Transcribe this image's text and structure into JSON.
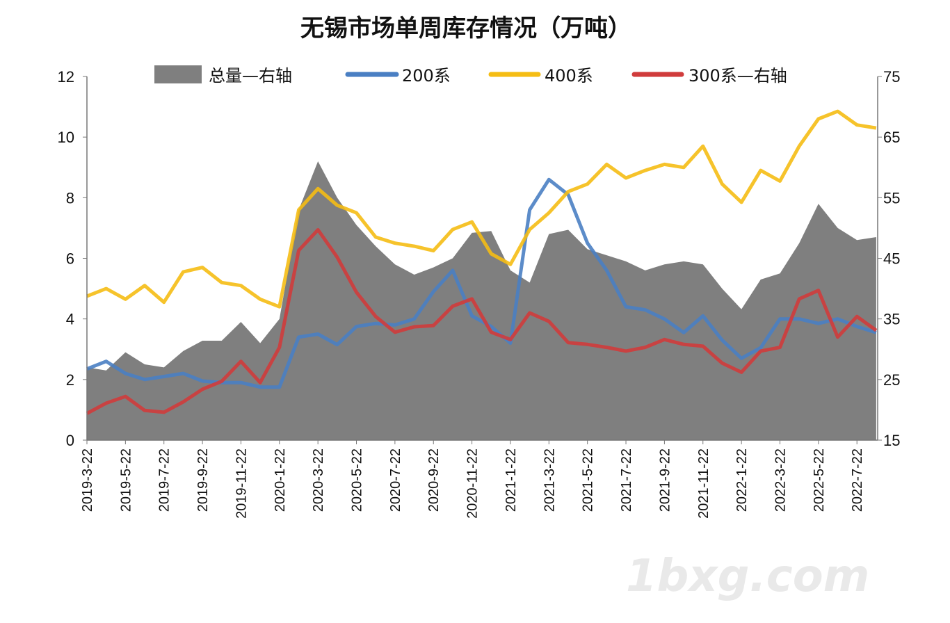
{
  "chart_data": {
    "type": "line",
    "title": "无锡市场单周库存情况（万吨）",
    "x": [
      "2019-3-22",
      "2019-4-22",
      "2019-5-22",
      "2019-6-22",
      "2019-7-22",
      "2019-8-22",
      "2019-9-22",
      "2019-10-22",
      "2019-11-22",
      "2019-12-22",
      "2020-1-22",
      "2020-2-22",
      "2020-3-22",
      "2020-4-22",
      "2020-5-22",
      "2020-6-22",
      "2020-7-22",
      "2020-8-22",
      "2020-9-22",
      "2020-10-22",
      "2020-11-22",
      "2020-12-22",
      "2021-1-22",
      "2021-2-22",
      "2021-3-22",
      "2021-4-22",
      "2021-5-22",
      "2021-6-22",
      "2021-7-22",
      "2021-8-22",
      "2021-9-22",
      "2021-10-22",
      "2021-11-22",
      "2021-12-22",
      "2022-1-22",
      "2022-2-22",
      "2022-3-22",
      "2022-4-22",
      "2022-5-22",
      "2022-6-22",
      "2022-7-22",
      "2022-8-22"
    ],
    "x_tick_labels": [
      "2019-3-22",
      "2019-5-22",
      "2019-7-22",
      "2019-9-22",
      "2019-11-22",
      "2020-1-22",
      "2020-3-22",
      "2020-5-22",
      "2020-7-22",
      "2020-9-22",
      "2020-11-22",
      "2021-1-22",
      "2021-3-22",
      "2021-5-22",
      "2021-7-22",
      "2021-9-22",
      "2021-11-22",
      "2022-1-22",
      "2022-3-22",
      "2022-5-22",
      "2022-7-22"
    ],
    "y_left": {
      "ylim": [
        0,
        12
      ],
      "ticks": [
        "0",
        "2",
        "4",
        "6",
        "8",
        "10",
        "12"
      ]
    },
    "y_right": {
      "ylim": [
        15,
        75
      ],
      "ticks": [
        "15",
        "25",
        "35",
        "45",
        "55",
        "65",
        "75"
      ]
    },
    "grid": false,
    "legend_position": "top",
    "series": [
      {
        "name": "总量—右轴",
        "type": "area",
        "axis": "right",
        "color": "#7f7f7f",
        "values": [
          27,
          26.5,
          29.5,
          27.5,
          27,
          29.7,
          31.4,
          31.4,
          34.5,
          31,
          35,
          53,
          61,
          55,
          50.5,
          47,
          44,
          42.3,
          43.5,
          45,
          49.2,
          49.5,
          43,
          41,
          49,
          49.7,
          46.5,
          45.5,
          44.5,
          43,
          44,
          44.5,
          44,
          40,
          36.6,
          41.5,
          42.5,
          47.5,
          54,
          50,
          48,
          48.5
        ]
      },
      {
        "name": "200系",
        "type": "line",
        "axis": "left",
        "color": "#4a7fc3",
        "values": [
          2.35,
          2.6,
          2.2,
          2.0,
          2.1,
          2.2,
          1.95,
          1.9,
          1.9,
          1.75,
          1.75,
          3.4,
          3.5,
          3.15,
          3.75,
          3.85,
          3.8,
          4.0,
          4.9,
          5.6,
          4.1,
          3.75,
          3.2,
          7.6,
          8.6,
          8.1,
          6.5,
          5.6,
          4.4,
          4.3,
          4.0,
          3.55,
          4.1,
          3.3,
          2.7,
          3.05,
          4.0,
          4.0,
          3.85,
          4.0,
          3.75,
          3.55
        ]
      },
      {
        "name": "400系",
        "type": "line",
        "axis": "left",
        "color": "#f5bd14",
        "values": [
          4.75,
          5.0,
          4.65,
          5.1,
          4.55,
          5.55,
          5.7,
          5.2,
          5.1,
          4.65,
          4.4,
          7.6,
          8.3,
          7.75,
          7.5,
          6.7,
          6.5,
          6.4,
          6.25,
          6.95,
          7.2,
          6.15,
          5.8,
          6.95,
          7.5,
          8.2,
          8.45,
          9.1,
          8.65,
          8.9,
          9.1,
          9.0,
          9.7,
          8.45,
          7.85,
          8.9,
          8.55,
          9.7,
          10.6,
          10.85,
          10.4,
          10.3
        ]
      },
      {
        "name": "300系—右轴",
        "type": "line",
        "axis": "right",
        "color": "#d03c3c",
        "values": [
          19.4,
          21.1,
          22.2,
          19.9,
          19.6,
          21.3,
          23.4,
          24.7,
          28.0,
          24.5,
          30.3,
          46.3,
          49.7,
          45.2,
          39.4,
          35.4,
          32.8,
          33.7,
          33.9,
          37.1,
          38.3,
          32.8,
          31.6,
          36.0,
          34.6,
          31.1,
          30.8,
          30.3,
          29.7,
          30.3,
          31.6,
          30.8,
          30.5,
          27.7,
          26.2,
          29.7,
          30.3,
          38.3,
          39.7,
          32.0,
          35.4,
          33.1
        ]
      }
    ]
  },
  "watermark": "1bxg.com"
}
